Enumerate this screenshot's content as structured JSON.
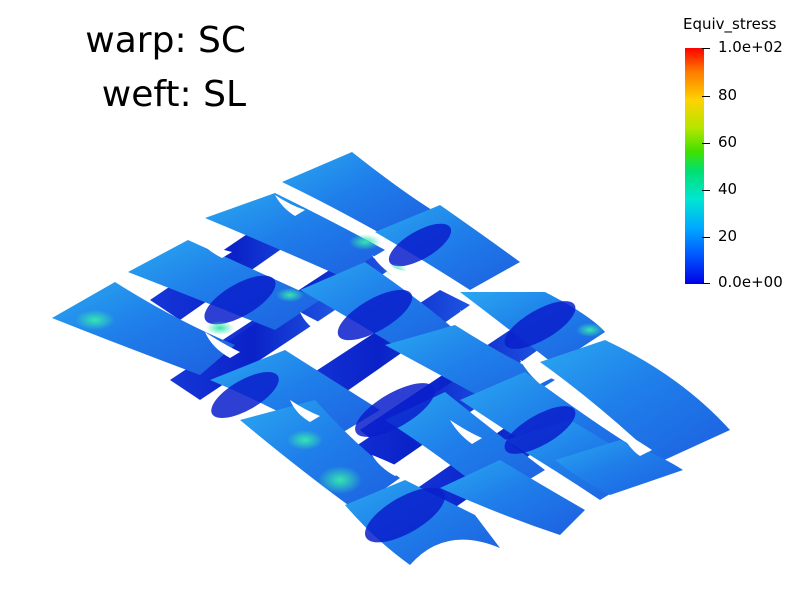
{
  "annotation": {
    "line1": "warp: SC",
    "line2": "weft: SL"
  },
  "legend": {
    "title": "Equiv_stress",
    "range": [
      0,
      100
    ],
    "ticks": [
      "1.0e+02",
      "80",
      "60",
      "40",
      "20",
      "0.0e+00"
    ],
    "colormap": [
      "#0000e6",
      "#0055ff",
      "#00aaff",
      "#00e6d2",
      "#00e070",
      "#40e000",
      "#b4e600",
      "#ffd200",
      "#ff7a00",
      "#ff0000"
    ]
  },
  "scene": {
    "warp_color": "#1f5fe8",
    "weft_color": "#1f8ff0",
    "shadow_color": "#0a22c8",
    "highlight_color": "#2fe0b0"
  }
}
